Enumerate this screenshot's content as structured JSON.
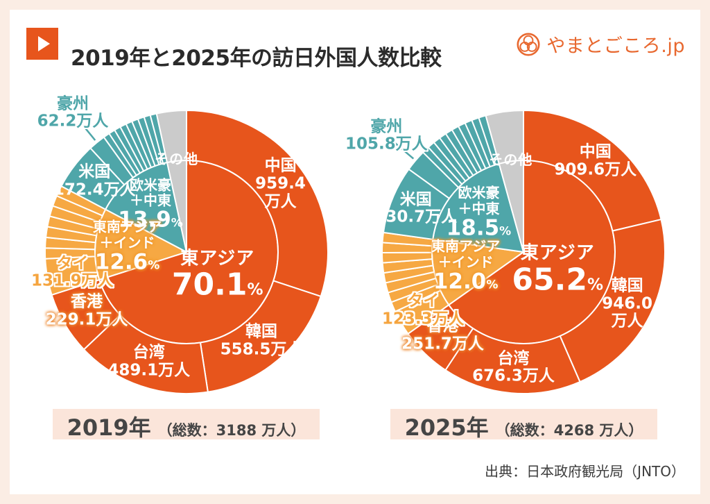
{
  "header": {
    "title": "2019年と2025年の訪日外国人数比較",
    "brand": "やまとごころ.jp"
  },
  "source": "出典：日本政府観光局（JNTO）",
  "colors": {
    "main": "#E7551C",
    "sub": "#F6A843",
    "teal": "#4FA6A9",
    "gray": "#CBCBCB",
    "brand": "#E8682F",
    "frame": "#FBEDE4",
    "caption_bg": "#FBE5DA"
  },
  "chart_data": [
    {
      "type": "pie",
      "variant": "nested-sunburst",
      "start_angle": "top",
      "direction": "clockwise",
      "year_label": "2019年",
      "total_label": "（総数：3188 万人）",
      "total": 3188,
      "unit": "万人",
      "pct_unit": "%",
      "categories": [
        {
          "key": "east-asia",
          "label": "東アジア",
          "pct": 70.1,
          "color": "main",
          "unlabeled_slices": 0,
          "children": [
            {
              "key": "china",
              "label": "中国",
              "value": 959.4
            },
            {
              "key": "korea",
              "label": "韓国",
              "value": 558.5
            },
            {
              "key": "taiwan",
              "label": "台湾",
              "value": 489.1
            },
            {
              "key": "hongkong",
              "label": "香港",
              "value": 229.1
            }
          ]
        },
        {
          "key": "sea-india",
          "label": "東南アジア\n＋インド",
          "pct": 12.6,
          "color": "sub",
          "unlabeled_slices": 7,
          "children": [
            {
              "key": "thailand",
              "label": "タイ",
              "value": 131.9
            }
          ]
        },
        {
          "key": "west",
          "label": "欧米豪\n＋中東",
          "pct": 13.9,
          "color": "teal",
          "unlabeled_slices": 9,
          "children": [
            {
              "key": "usa",
              "label": "米国",
              "value": 172.4
            },
            {
              "key": "australia",
              "label": "豪州",
              "value": 62.2
            }
          ]
        },
        {
          "key": "others",
          "label": "その他",
          "pct": 3.4,
          "show_pct": false,
          "color": "gray",
          "unlabeled_slices": 0,
          "children": []
        }
      ]
    },
    {
      "type": "pie",
      "variant": "nested-sunburst",
      "start_angle": "top",
      "direction": "clockwise",
      "year_label": "2025年",
      "total_label": "（総数：4268 万人）",
      "total": 4268,
      "unit": "万人",
      "pct_unit": "%",
      "categories": [
        {
          "key": "east-asia",
          "label": "東アジア",
          "pct": 65.2,
          "color": "main",
          "unlabeled_slices": 0,
          "children": [
            {
              "key": "china",
              "label": "中国",
              "value": 909.6
            },
            {
              "key": "korea",
              "label": "韓国",
              "value": 946.0
            },
            {
              "key": "taiwan",
              "label": "台湾",
              "value": 676.3
            },
            {
              "key": "hongkong",
              "label": "香港",
              "value": 251.7
            }
          ]
        },
        {
          "key": "sea-india",
          "label": "東南アジア\n＋インド",
          "pct": 12.0,
          "color": "sub",
          "unlabeled_slices": 8,
          "children": [
            {
              "key": "thailand",
              "label": "タイ",
              "value": 123.3
            }
          ]
        },
        {
          "key": "west",
          "label": "欧米豪\n＋中東",
          "pct": 18.5,
          "color": "teal",
          "unlabeled_slices": 10,
          "children": [
            {
              "key": "usa",
              "label": "米国",
              "value": 330.7
            },
            {
              "key": "australia",
              "label": "豪州",
              "value": 105.8
            }
          ]
        },
        {
          "key": "others",
          "label": "その他",
          "pct": 4.3,
          "show_pct": false,
          "color": "gray",
          "unlabeled_slices": 0,
          "children": []
        }
      ]
    }
  ]
}
